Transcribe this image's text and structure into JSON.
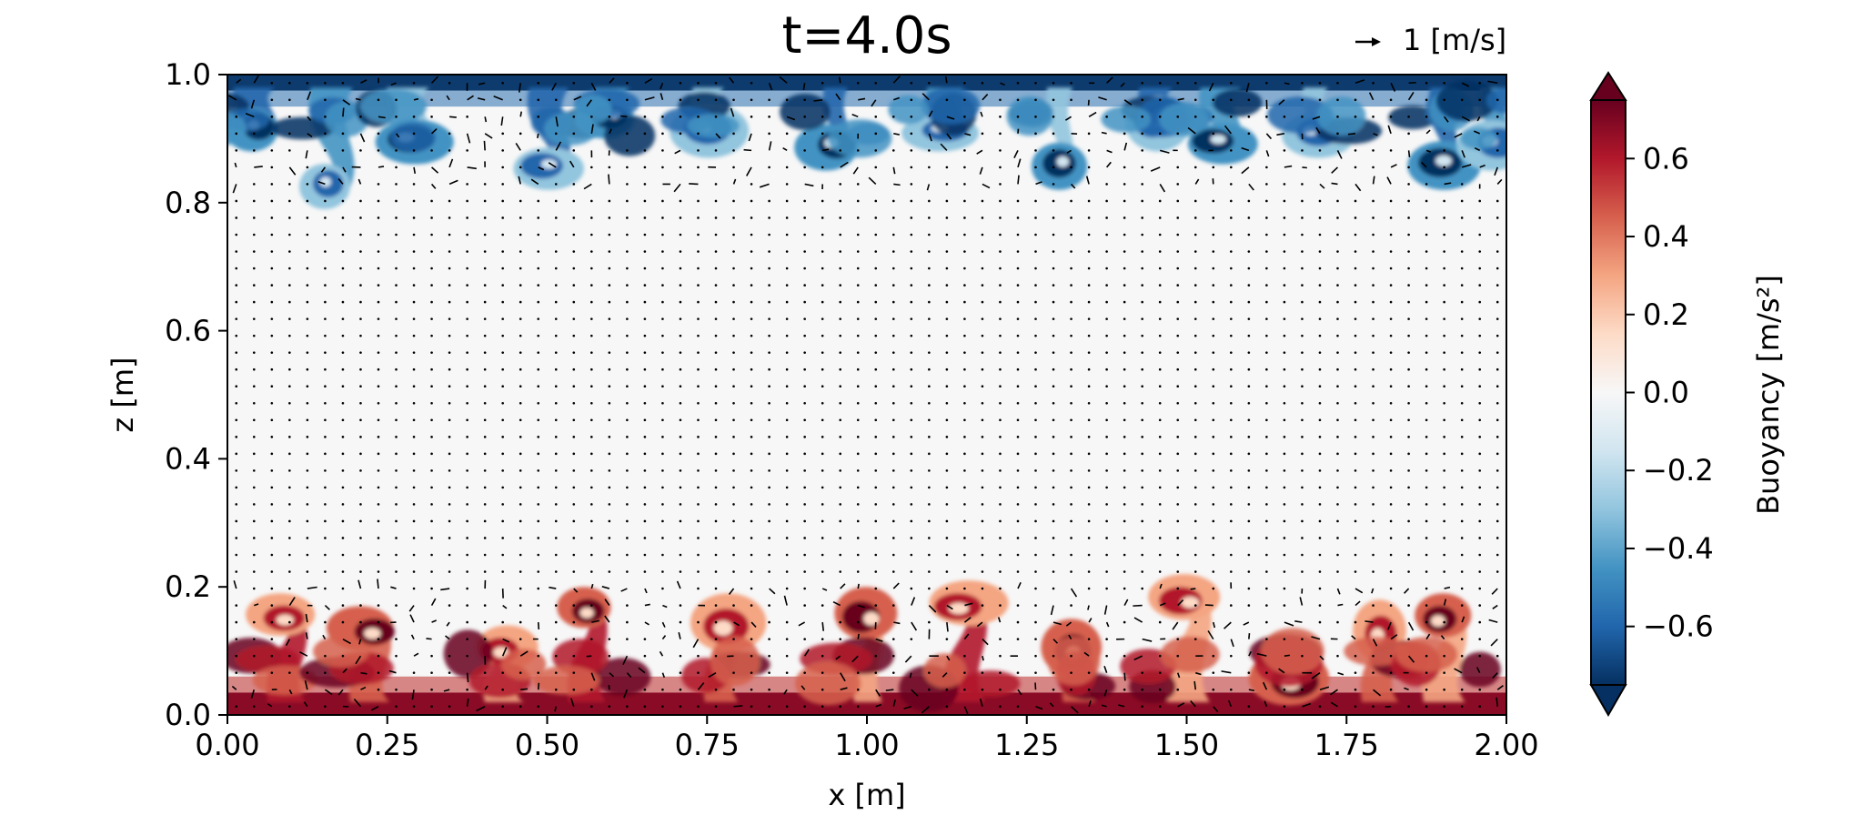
{
  "chart_data": {
    "type": "heatmap",
    "title": "t=4.0s",
    "xlabel": "x [m]",
    "ylabel": "z [m]",
    "xlim": [
      0.0,
      2.0
    ],
    "ylim": [
      0.0,
      1.0
    ],
    "xticks": [
      "0.00",
      "0.25",
      "0.50",
      "0.75",
      "1.00",
      "1.25",
      "1.50",
      "1.75",
      "2.00"
    ],
    "yticks": [
      "0.0",
      "0.2",
      "0.4",
      "0.6",
      "0.8",
      "1.0"
    ],
    "quiver_key_label": "1 [m/s]",
    "colorbar": {
      "label": "Buoyancy [m/s²]",
      "range": [
        -0.75,
        0.75
      ],
      "ticks": [
        "−0.6",
        "−0.4",
        "−0.2",
        "0.0",
        "0.2",
        "0.4",
        "0.6"
      ],
      "tick_values": [
        -0.6,
        -0.4,
        -0.2,
        0.0,
        0.2,
        0.4,
        0.6
      ],
      "extend": "both",
      "colormap": "RdBu_r",
      "low_color": "#053061",
      "high_color": "#67001f"
    },
    "field_description": {
      "lower_plumes_top": 0.2,
      "upper_plumes_bottom": 0.8,
      "interior_value": 0.0,
      "plume_tops_x": [
        0.09,
        0.22,
        0.43,
        0.56,
        0.77,
        1.0,
        1.15,
        1.33,
        1.5,
        1.66,
        1.8,
        1.9
      ],
      "plume_heights": [
        0.19,
        0.17,
        0.14,
        0.2,
        0.19,
        0.2,
        0.21,
        0.15,
        0.22,
        0.1,
        0.18,
        0.19
      ],
      "upper_plume_x": [
        0.04,
        0.16,
        0.28,
        0.5,
        0.6,
        0.75,
        0.95,
        1.12,
        1.3,
        1.45,
        1.55,
        1.7,
        1.9,
        1.98
      ],
      "upper_plume_depths": [
        0.12,
        0.21,
        0.14,
        0.18,
        0.1,
        0.13,
        0.15,
        0.12,
        0.18,
        0.12,
        0.14,
        0.13,
        0.18,
        0.15
      ]
    }
  }
}
